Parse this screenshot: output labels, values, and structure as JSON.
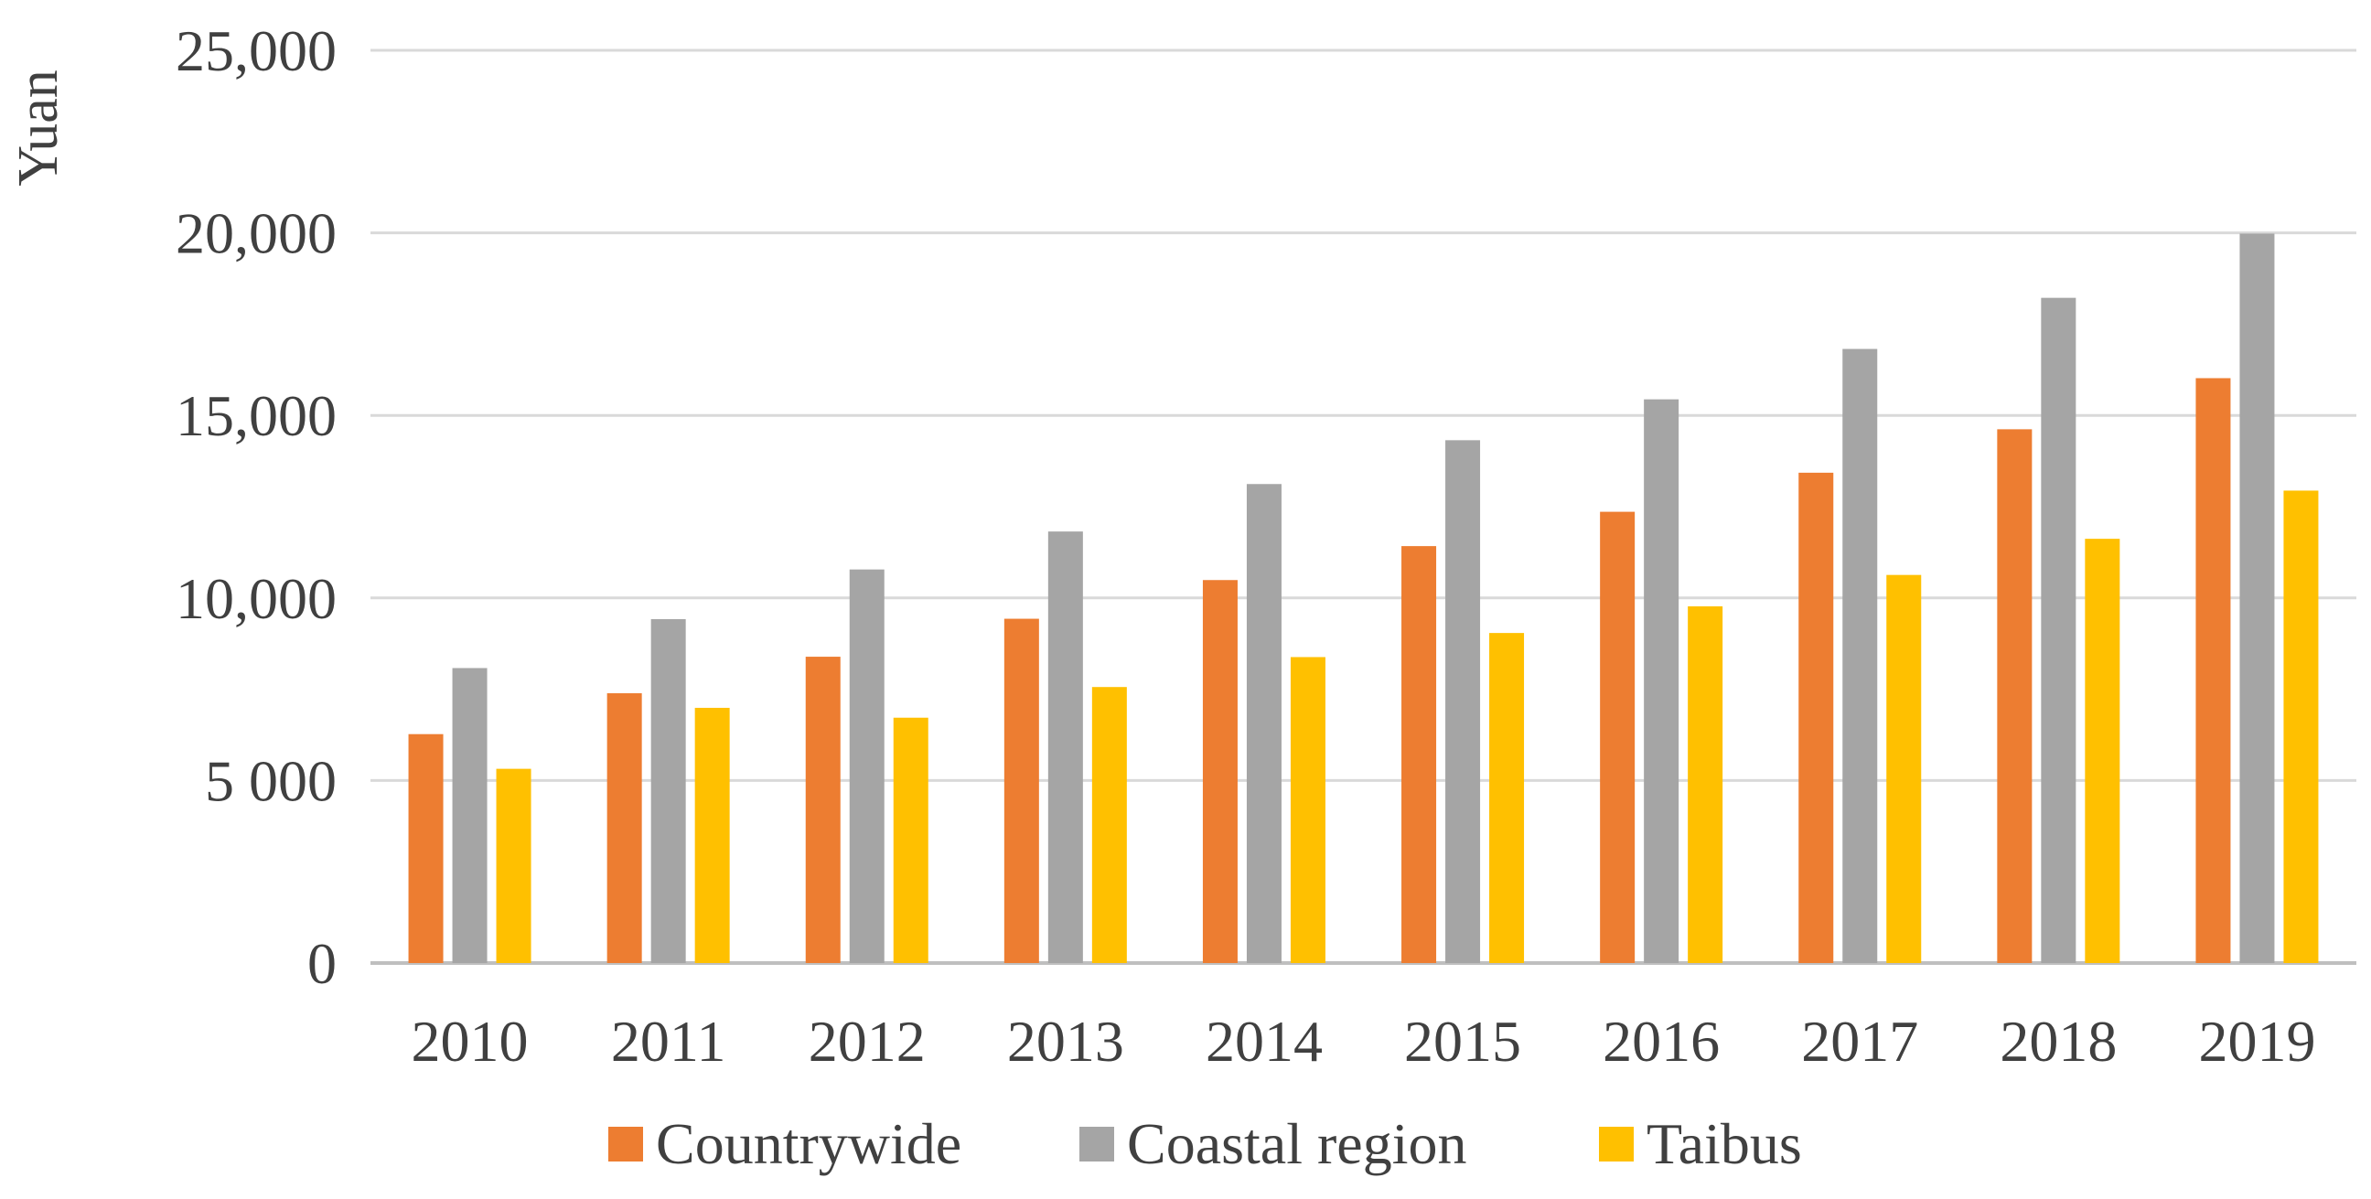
{
  "chart_data": {
    "type": "bar",
    "title": "",
    "xlabel": "",
    "ylabel": "Yuan",
    "categories": [
      "2010",
      "2011",
      "2012",
      "2013",
      "2014",
      "2015",
      "2016",
      "2017",
      "2018",
      "2019"
    ],
    "series": [
      {
        "name": "Countrywide",
        "color": "#ED7D31",
        "values": [
          6270,
          7390,
          8390,
          9430,
          10490,
          11420,
          12360,
          13430,
          14620,
          16020
        ]
      },
      {
        "name": "Coastal region",
        "color": "#A5A5A5",
        "values": [
          8080,
          9420,
          10780,
          11820,
          13120,
          14320,
          15440,
          16820,
          18220,
          19980
        ]
      },
      {
        "name": "Taibus",
        "color": "#FFC000",
        "values": [
          5320,
          6990,
          6720,
          7560,
          8380,
          9040,
          9770,
          10630,
          11620,
          12940
        ]
      }
    ],
    "ylim": [
      0,
      25000
    ],
    "yticks": [
      0,
      5000,
      10000,
      15000,
      20000,
      25000
    ],
    "ytick_labels": [
      "0",
      "5 000",
      "10,000",
      "15,000",
      "20,000",
      "25,000"
    ],
    "grid": true,
    "legend_position": "bottom"
  }
}
